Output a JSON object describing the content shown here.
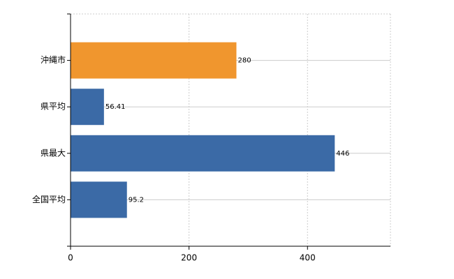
{
  "chart_data": {
    "type": "hbar",
    "categories": [
      "沖縄市",
      "県平均",
      "県最大",
      "全国平均"
    ],
    "values": [
      280,
      56.41,
      446,
      95.2
    ],
    "colors": [
      "#f0962e",
      "#3b6aa6",
      "#3b6aa6",
      "#3b6aa6"
    ],
    "xlim": [
      0,
      540
    ],
    "xticks": [
      0,
      200,
      400
    ],
    "grid": true
  }
}
